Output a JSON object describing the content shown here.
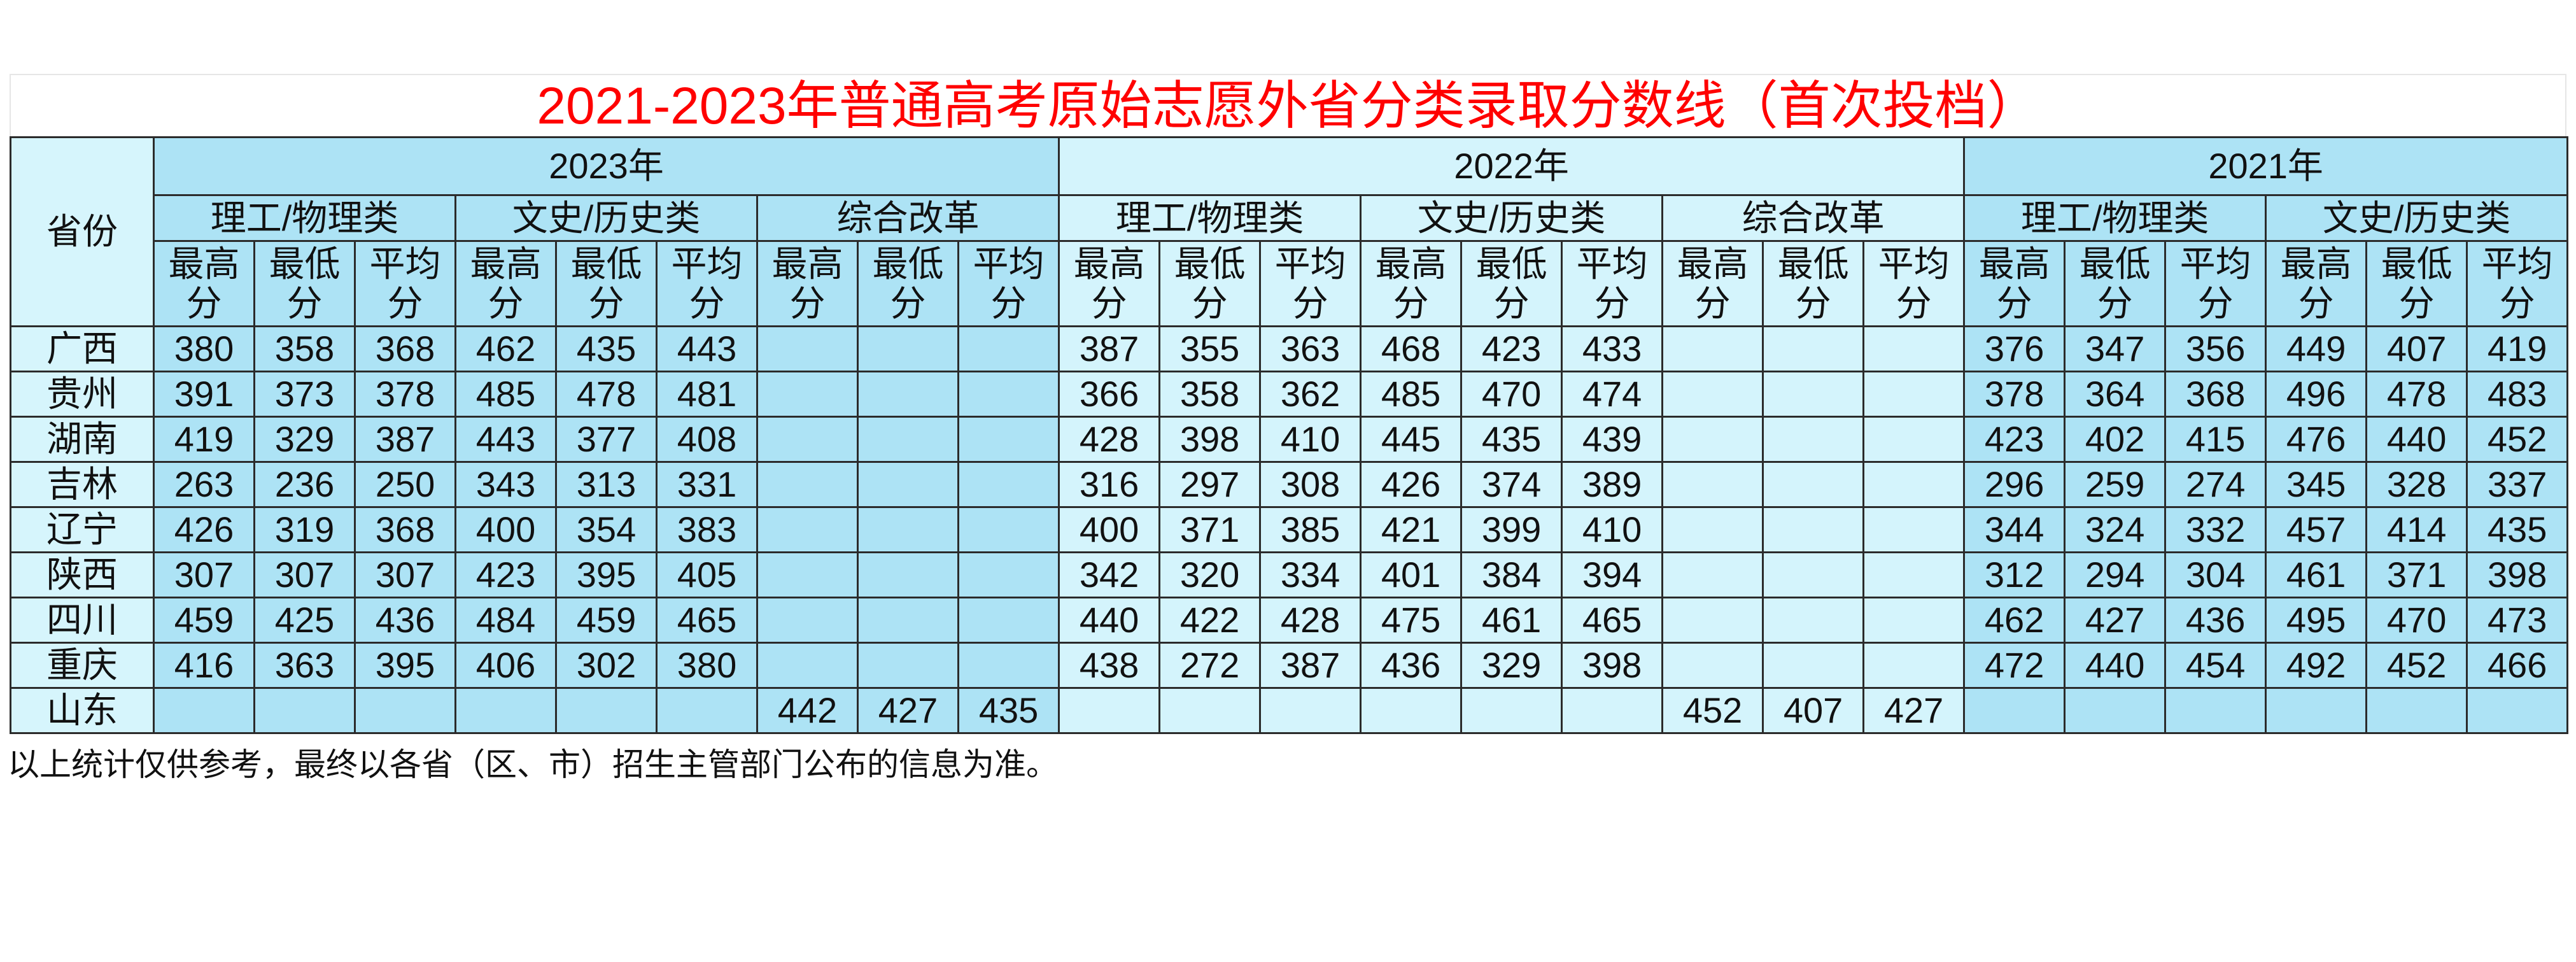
{
  "title": "2021-2023年普通高考原始志愿外省分类录取分数线（首次投档）",
  "province_header": "省份",
  "metric_labels": [
    "最高分",
    "最低分",
    "平均分"
  ],
  "years": [
    {
      "label": "2023年",
      "shade": "dark",
      "categories": [
        "理工/物理类",
        "文史/历史类",
        "综合改革"
      ]
    },
    {
      "label": "2022年",
      "shade": "light",
      "categories": [
        "理工/物理类",
        "文史/历史类",
        "综合改革"
      ]
    },
    {
      "label": "2021年",
      "shade": "dark",
      "categories": [
        "理工/物理类",
        "文史/历史类"
      ]
    }
  ],
  "rows": [
    {
      "province": "广西",
      "values": [
        "380",
        "358",
        "368",
        "462",
        "435",
        "443",
        "",
        "",
        "",
        "387",
        "355",
        "363",
        "468",
        "423",
        "433",
        "",
        "",
        "",
        "376",
        "347",
        "356",
        "449",
        "407",
        "419"
      ]
    },
    {
      "province": "贵州",
      "values": [
        "391",
        "373",
        "378",
        "485",
        "478",
        "481",
        "",
        "",
        "",
        "366",
        "358",
        "362",
        "485",
        "470",
        "474",
        "",
        "",
        "",
        "378",
        "364",
        "368",
        "496",
        "478",
        "483"
      ]
    },
    {
      "province": "湖南",
      "values": [
        "419",
        "329",
        "387",
        "443",
        "377",
        "408",
        "",
        "",
        "",
        "428",
        "398",
        "410",
        "445",
        "435",
        "439",
        "",
        "",
        "",
        "423",
        "402",
        "415",
        "476",
        "440",
        "452"
      ]
    },
    {
      "province": "吉林",
      "values": [
        "263",
        "236",
        "250",
        "343",
        "313",
        "331",
        "",
        "",
        "",
        "316",
        "297",
        "308",
        "426",
        "374",
        "389",
        "",
        "",
        "",
        "296",
        "259",
        "274",
        "345",
        "328",
        "337"
      ]
    },
    {
      "province": "辽宁",
      "values": [
        "426",
        "319",
        "368",
        "400",
        "354",
        "383",
        "",
        "",
        "",
        "400",
        "371",
        "385",
        "421",
        "399",
        "410",
        "",
        "",
        "",
        "344",
        "324",
        "332",
        "457",
        "414",
        "435"
      ]
    },
    {
      "province": "陕西",
      "values": [
        "307",
        "307",
        "307",
        "423",
        "395",
        "405",
        "",
        "",
        "",
        "342",
        "320",
        "334",
        "401",
        "384",
        "394",
        "",
        "",
        "",
        "312",
        "294",
        "304",
        "461",
        "371",
        "398"
      ]
    },
    {
      "province": "四川",
      "values": [
        "459",
        "425",
        "436",
        "484",
        "459",
        "465",
        "",
        "",
        "",
        "440",
        "422",
        "428",
        "475",
        "461",
        "465",
        "",
        "",
        "",
        "462",
        "427",
        "436",
        "495",
        "470",
        "473"
      ]
    },
    {
      "province": "重庆",
      "values": [
        "416",
        "363",
        "395",
        "406",
        "302",
        "380",
        "",
        "",
        "",
        "438",
        "272",
        "387",
        "436",
        "329",
        "398",
        "",
        "",
        "",
        "472",
        "440",
        "454",
        "492",
        "452",
        "466"
      ]
    },
    {
      "province": "山东",
      "values": [
        "",
        "",
        "",
        "",
        "",
        "",
        "442",
        "427",
        "435",
        "",
        "",
        "",
        "",
        "",
        "",
        "452",
        "407",
        "427",
        "",
        "",
        "",
        "",
        "",
        ""
      ]
    }
  ],
  "footnote": "以上统计仅供参考，最终以各省（区、市）招生主管部门公布的信息为准。",
  "colors": {
    "title": "#ff0000",
    "dark_cell": "#ade3f5",
    "light_cell": "#d4f4fc",
    "border": "#2b2b2b"
  }
}
